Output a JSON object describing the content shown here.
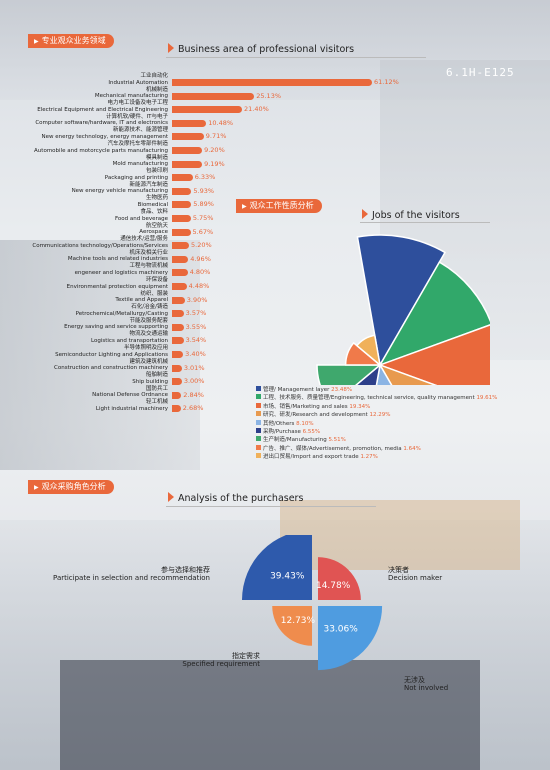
{
  "section1": {
    "cn_title": "专业观众业务领域",
    "en_title": "Business area of professional visitors"
  },
  "booth_sign": "6.1H-E125",
  "chart_data": [
    {
      "type": "bar",
      "title": "Business area of professional visitors",
      "categories": [
        {
          "cn": "工业自动化",
          "en": "Industrial Automation"
        },
        {
          "cn": "机械制造",
          "en": "Mechanical manufacturing"
        },
        {
          "cn": "电力电工设备及电子工程",
          "en": "Electrical Equipment and Electrical Engineering"
        },
        {
          "cn": "计算机软/硬件、IT与电子",
          "en": "Computer software/hardware, IT and electronics"
        },
        {
          "cn": "新能源技术、能源管理",
          "en": "New energy technology, energy management"
        },
        {
          "cn": "汽车及摩托车零部件制造",
          "en": "Automobile and motorcycle parts manufacturing"
        },
        {
          "cn": "模具制造",
          "en": "Mold manufacturing"
        },
        {
          "cn": "包装印刷",
          "en": "Packaging and printing"
        },
        {
          "cn": "新能源汽车制造",
          "en": "New energy vehicle manufacturing"
        },
        {
          "cn": "生物医药",
          "en": "Biomedical"
        },
        {
          "cn": "食品、饮料",
          "en": "Food and beverage"
        },
        {
          "cn": "航空航天",
          "en": "Aerospace"
        },
        {
          "cn": "通信技术/运营/服务",
          "en": "Communications technology/Operations/Services"
        },
        {
          "cn": "机床及相关行业",
          "en": "Machine tools and related industries"
        },
        {
          "cn": "工程与物流机械",
          "en": "engeneer and logistics machinery"
        },
        {
          "cn": "环保设备",
          "en": "Environmental protection equipment"
        },
        {
          "cn": "纺织、服装",
          "en": "Textile and Apparel"
        },
        {
          "cn": "石化/冶金/铸造",
          "en": "Petrochemical/Metallurgy/Casting"
        },
        {
          "cn": "节能及服务配套",
          "en": "Energy saving and service supporting"
        },
        {
          "cn": "物流及交通运输",
          "en": "Logistics and transportation"
        },
        {
          "cn": "半导体照明及应用",
          "en": "Semiconductor Lighting and Applications"
        },
        {
          "cn": "建筑及建筑机械",
          "en": "Construction and construction machinery"
        },
        {
          "cn": "船舶制造",
          "en": "Ship building"
        },
        {
          "cn": "国防兵工",
          "en": "National Defense Ordnance"
        },
        {
          "cn": "轻工机械",
          "en": "Light industrial machinery"
        }
      ],
      "values": [
        61.12,
        25.13,
        21.4,
        10.48,
        9.71,
        9.2,
        9.19,
        6.33,
        5.93,
        5.89,
        5.75,
        5.67,
        5.2,
        4.96,
        4.8,
        4.48,
        3.9,
        3.57,
        3.55,
        3.54,
        3.4,
        3.01,
        3.0,
        2.84,
        2.68
      ],
      "labels": [
        "61.12%",
        "25.13%",
        "21.40%",
        "10.48%",
        "9.71%",
        "9.20%",
        "9.19%",
        "6.33%",
        "5.93%",
        "5.89%",
        "5.75%",
        "5.67%",
        "5.20%",
        "4.96%",
        "4.80%",
        "4.48%",
        "3.90%",
        "3.57%",
        "3.55%",
        "3.54%",
        "3.40%",
        "3.01%",
        "3.00%",
        "2.84%",
        "2.68%"
      ],
      "color": "#e9683b"
    },
    {
      "type": "pie",
      "title": "Jobs of the visitors",
      "slices": [
        {
          "label": "管理/ Management layer",
          "value": 23.48,
          "text": "23.48%",
          "color": "#2e4f9c"
        },
        {
          "label": "工程、技术服务、质量管理/Engineering, technical service, quality management",
          "value": 19.61,
          "text": "19.61%",
          "color": "#31a86a"
        },
        {
          "label": "市场、销售/Marketing and sales",
          "value": 19.34,
          "text": "19.34%",
          "color": "#e9683b"
        },
        {
          "label": "研究、研发/Research and development",
          "value": 12.29,
          "text": "12.29%",
          "color": "#e89a4f"
        },
        {
          "label": "其他/Others",
          "value": 8.1,
          "text": "8.10%",
          "color": "#8bb4e4"
        },
        {
          "label": "采购/Purchase",
          "value": 6.55,
          "text": "6.55%",
          "color": "#2d3f8a"
        },
        {
          "label": "生产制造/Manufacturing",
          "value": 5.51,
          "text": "5.51%",
          "color": "#3fa86d"
        },
        {
          "label": "广告、推广、媒体/Advertisement, promotion, media",
          "value": 1.64,
          "text": "1.64%",
          "color": "#f07a4a"
        },
        {
          "label": "进出口贸易/Import and export trade",
          "value": 1.27,
          "text": "1.27%",
          "color": "#f0b15a"
        }
      ]
    },
    {
      "type": "pie",
      "title": "Analysis of the purchasers",
      "slices": [
        {
          "cn": "参与选择和推荐",
          "en": "Participate in selection and recommendation",
          "value": 39.43,
          "text": "39.43%",
          "color": "#2e5aac"
        },
        {
          "cn": "决策者",
          "en": "Decision maker",
          "value": 14.78,
          "text": "14.78%",
          "color": "#e05453"
        },
        {
          "cn": "无涉及",
          "en": "Not involved",
          "value": 33.06,
          "text": "33.06%",
          "color": "#4f9ce0"
        },
        {
          "cn": "指定需求",
          "en": "Specified requirement",
          "value": 12.73,
          "text": "12.73%",
          "color": "#ef8c4d"
        }
      ]
    }
  ],
  "section2": {
    "cn_title": "观众工作性质分析",
    "en_title": "Jobs of the visitors"
  },
  "section3": {
    "cn_title": "观众采购角色分析",
    "en_title": "Analysis of the purchasers"
  }
}
